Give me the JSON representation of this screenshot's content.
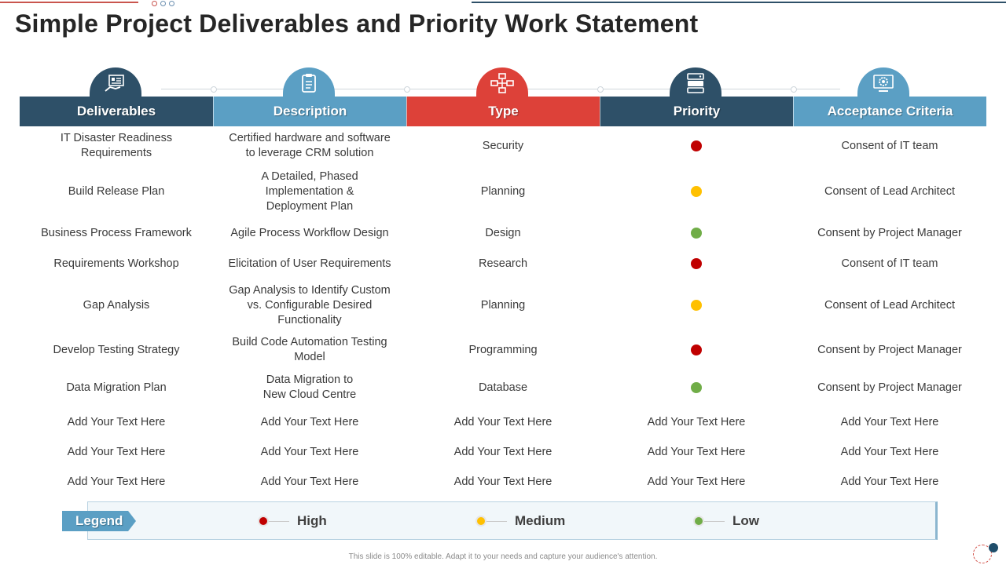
{
  "title": "Simple Project Deliverables and Priority Work Statement",
  "colors": {
    "dark_blue": "#2e5068",
    "light_blue": "#5b9fc4",
    "red": "#dd4139",
    "priority_high": "#c00000",
    "priority_medium": "#ffc000",
    "priority_low": "#70ad47"
  },
  "columns": [
    {
      "label": "Deliverables",
      "icon": "hand-dashboard-icon",
      "color": "#2e5068"
    },
    {
      "label": "Description",
      "icon": "clipboard-icon",
      "color": "#5b9fc4"
    },
    {
      "label": "Type",
      "icon": "flowchart-icon",
      "color": "#dd4139"
    },
    {
      "label": "Priority",
      "icon": "server-stack-icon",
      "color": "#2e5068"
    },
    {
      "label": "Acceptance Criteria",
      "icon": "gear-screen-icon",
      "color": "#5b9fc4"
    }
  ],
  "rows": [
    {
      "deliverable": "IT Disaster Readiness\nRequirements",
      "description": "Certified hardware and software\nto leverage CRM solution",
      "type": "Security",
      "priority": "high",
      "acceptance": "Consent of IT team"
    },
    {
      "deliverable": "Build Release Plan",
      "description": "A Detailed, Phased\nImplementation &\nDeployment Plan",
      "type": "Planning",
      "priority": "medium",
      "acceptance": "Consent of Lead Architect"
    },
    {
      "deliverable": "Business Process Framework",
      "description": "Agile Process Workflow Design",
      "type": "Design",
      "priority": "low",
      "acceptance": "Consent by Project Manager"
    },
    {
      "deliverable": "Requirements Workshop",
      "description": "Elicitation of User Requirements",
      "type": "Research",
      "priority": "high",
      "acceptance": "Consent of IT team"
    },
    {
      "deliverable": "Gap Analysis",
      "description": "Gap Analysis to Identify Custom\nvs. Configurable Desired\nFunctionality",
      "type": "Planning",
      "priority": "medium",
      "acceptance": "Consent of Lead Architect"
    },
    {
      "deliverable": "Develop Testing Strategy",
      "description": "Build Code Automation Testing\nModel",
      "type": "Programming",
      "priority": "high",
      "acceptance": "Consent by Project Manager"
    },
    {
      "deliverable": "Data Migration Plan",
      "description": "Data Migration to\nNew Cloud Centre",
      "type": "Database",
      "priority": "low",
      "acceptance": "Consent by Project Manager"
    },
    {
      "deliverable": "Add Your Text Here",
      "description": "Add Your Text Here",
      "type": "Add Your Text Here",
      "priority": "Add Your Text Here",
      "acceptance": "Add Your Text Here"
    },
    {
      "deliverable": "Add Your Text Here",
      "description": "Add Your Text Here",
      "type": "Add Your Text Here",
      "priority": "Add Your Text Here",
      "acceptance": "Add Your Text Here"
    },
    {
      "deliverable": "Add Your Text Here",
      "description": "Add Your Text Here",
      "type": "Add Your Text Here",
      "priority": "Add Your Text Here",
      "acceptance": "Add Your Text Here"
    }
  ],
  "legend": {
    "title": "Legend",
    "items": [
      {
        "key": "high",
        "label": "High",
        "color": "#c00000"
      },
      {
        "key": "medium",
        "label": "Medium",
        "color": "#ffc000"
      },
      {
        "key": "low",
        "label": "Low",
        "color": "#70ad47"
      }
    ]
  },
  "footer": "This slide is 100% editable. Adapt it to your needs and capture your audience's attention."
}
